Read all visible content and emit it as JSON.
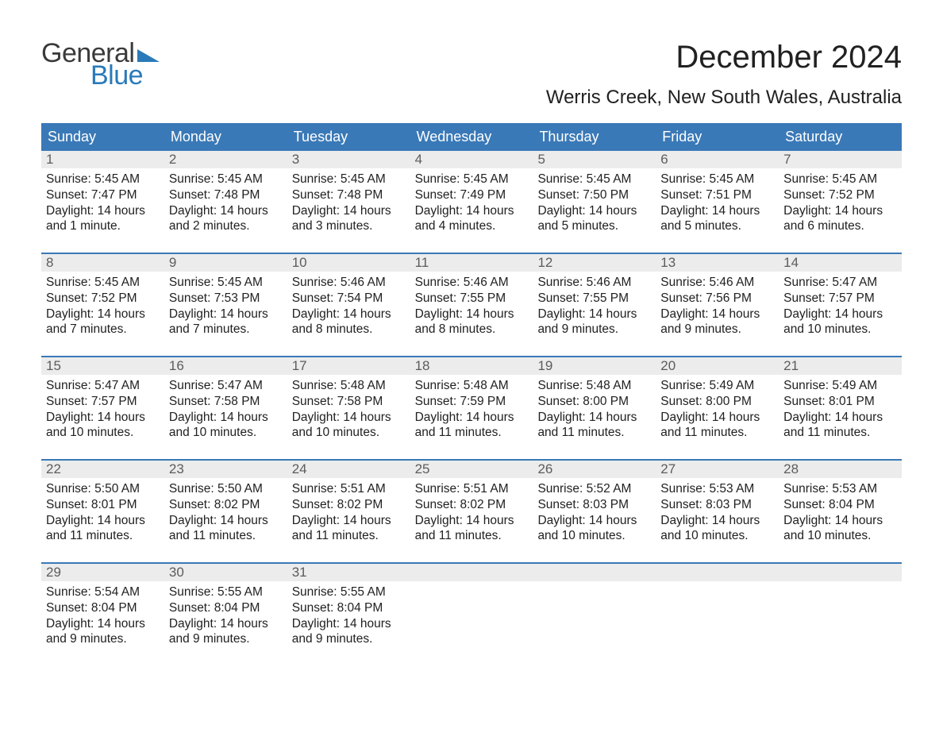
{
  "logo": {
    "part1": "General",
    "part2": "Blue",
    "part1_color": "#3a3a3a",
    "part2_color": "#2a7ab9",
    "wedge_color": "#2a7ab9"
  },
  "title": "December 2024",
  "location": "Werris Creek, New South Wales, Australia",
  "colors": {
    "header_bg": "#3a79b7",
    "header_text": "#ffffff",
    "daynum_bg": "#ececec",
    "daynum_text": "#5c5c5c",
    "body_text": "#212121",
    "week_divider": "#3a79b7",
    "page_bg": "#ffffff"
  },
  "typography": {
    "month_title_fontsize": 40,
    "location_fontsize": 24,
    "weekday_fontsize": 18,
    "daynum_fontsize": 17,
    "body_fontsize": 15.5,
    "font_family": "Arial"
  },
  "layout": {
    "columns": 7,
    "rows": 5
  },
  "weekdays": [
    "Sunday",
    "Monday",
    "Tuesday",
    "Wednesday",
    "Thursday",
    "Friday",
    "Saturday"
  ],
  "days": [
    {
      "n": "1",
      "sunrise": "5:45 AM",
      "sunset": "7:47 PM",
      "daylight": "14 hours and 1 minute."
    },
    {
      "n": "2",
      "sunrise": "5:45 AM",
      "sunset": "7:48 PM",
      "daylight": "14 hours and 2 minutes."
    },
    {
      "n": "3",
      "sunrise": "5:45 AM",
      "sunset": "7:48 PM",
      "daylight": "14 hours and 3 minutes."
    },
    {
      "n": "4",
      "sunrise": "5:45 AM",
      "sunset": "7:49 PM",
      "daylight": "14 hours and 4 minutes."
    },
    {
      "n": "5",
      "sunrise": "5:45 AM",
      "sunset": "7:50 PM",
      "daylight": "14 hours and 5 minutes."
    },
    {
      "n": "6",
      "sunrise": "5:45 AM",
      "sunset": "7:51 PM",
      "daylight": "14 hours and 5 minutes."
    },
    {
      "n": "7",
      "sunrise": "5:45 AM",
      "sunset": "7:52 PM",
      "daylight": "14 hours and 6 minutes."
    },
    {
      "n": "8",
      "sunrise": "5:45 AM",
      "sunset": "7:52 PM",
      "daylight": "14 hours and 7 minutes."
    },
    {
      "n": "9",
      "sunrise": "5:45 AM",
      "sunset": "7:53 PM",
      "daylight": "14 hours and 7 minutes."
    },
    {
      "n": "10",
      "sunrise": "5:46 AM",
      "sunset": "7:54 PM",
      "daylight": "14 hours and 8 minutes."
    },
    {
      "n": "11",
      "sunrise": "5:46 AM",
      "sunset": "7:55 PM",
      "daylight": "14 hours and 8 minutes."
    },
    {
      "n": "12",
      "sunrise": "5:46 AM",
      "sunset": "7:55 PM",
      "daylight": "14 hours and 9 minutes."
    },
    {
      "n": "13",
      "sunrise": "5:46 AM",
      "sunset": "7:56 PM",
      "daylight": "14 hours and 9 minutes."
    },
    {
      "n": "14",
      "sunrise": "5:47 AM",
      "sunset": "7:57 PM",
      "daylight": "14 hours and 10 minutes."
    },
    {
      "n": "15",
      "sunrise": "5:47 AM",
      "sunset": "7:57 PM",
      "daylight": "14 hours and 10 minutes."
    },
    {
      "n": "16",
      "sunrise": "5:47 AM",
      "sunset": "7:58 PM",
      "daylight": "14 hours and 10 minutes."
    },
    {
      "n": "17",
      "sunrise": "5:48 AM",
      "sunset": "7:58 PM",
      "daylight": "14 hours and 10 minutes."
    },
    {
      "n": "18",
      "sunrise": "5:48 AM",
      "sunset": "7:59 PM",
      "daylight": "14 hours and 11 minutes."
    },
    {
      "n": "19",
      "sunrise": "5:48 AM",
      "sunset": "8:00 PM",
      "daylight": "14 hours and 11 minutes."
    },
    {
      "n": "20",
      "sunrise": "5:49 AM",
      "sunset": "8:00 PM",
      "daylight": "14 hours and 11 minutes."
    },
    {
      "n": "21",
      "sunrise": "5:49 AM",
      "sunset": "8:01 PM",
      "daylight": "14 hours and 11 minutes."
    },
    {
      "n": "22",
      "sunrise": "5:50 AM",
      "sunset": "8:01 PM",
      "daylight": "14 hours and 11 minutes."
    },
    {
      "n": "23",
      "sunrise": "5:50 AM",
      "sunset": "8:02 PM",
      "daylight": "14 hours and 11 minutes."
    },
    {
      "n": "24",
      "sunrise": "5:51 AM",
      "sunset": "8:02 PM",
      "daylight": "14 hours and 11 minutes."
    },
    {
      "n": "25",
      "sunrise": "5:51 AM",
      "sunset": "8:02 PM",
      "daylight": "14 hours and 11 minutes."
    },
    {
      "n": "26",
      "sunrise": "5:52 AM",
      "sunset": "8:03 PM",
      "daylight": "14 hours and 10 minutes."
    },
    {
      "n": "27",
      "sunrise": "5:53 AM",
      "sunset": "8:03 PM",
      "daylight": "14 hours and 10 minutes."
    },
    {
      "n": "28",
      "sunrise": "5:53 AM",
      "sunset": "8:04 PM",
      "daylight": "14 hours and 10 minutes."
    },
    {
      "n": "29",
      "sunrise": "5:54 AM",
      "sunset": "8:04 PM",
      "daylight": "14 hours and 9 minutes."
    },
    {
      "n": "30",
      "sunrise": "5:55 AM",
      "sunset": "8:04 PM",
      "daylight": "14 hours and 9 minutes."
    },
    {
      "n": "31",
      "sunrise": "5:55 AM",
      "sunset": "8:04 PM",
      "daylight": "14 hours and 9 minutes."
    }
  ],
  "labels": {
    "sunrise": "Sunrise: ",
    "sunset": "Sunset: ",
    "daylight": "Daylight: "
  }
}
